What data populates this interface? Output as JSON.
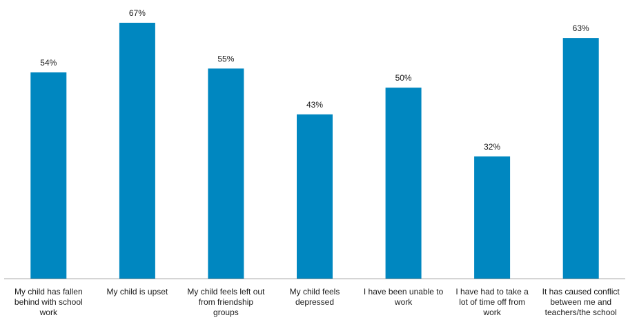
{
  "chart_data": {
    "type": "bar",
    "title": "",
    "xlabel": "",
    "ylabel": "",
    "ylim": [
      0,
      70
    ],
    "grid": false,
    "legend": "none",
    "bar_color": "#0087C0",
    "axis_color": "#9a9a9a",
    "value_suffix": "%",
    "categories": [
      [
        "My child has fallen",
        "behind with school",
        "work"
      ],
      [
        "My child is upset"
      ],
      [
        "My child feels left out",
        "from friendship",
        "groups"
      ],
      [
        "My child feels",
        "depressed"
      ],
      [
        "I have been unable to",
        "work"
      ],
      [
        "I have had to take a",
        "lot of time off from",
        "work"
      ],
      [
        "It has caused conflict",
        "between me and",
        "teachers/the school"
      ]
    ],
    "values": [
      54,
      67,
      55,
      43,
      50,
      32,
      63
    ],
    "data_labels": [
      "54%",
      "67%",
      "55%",
      "43%",
      "50%",
      "32%",
      "63%"
    ]
  }
}
